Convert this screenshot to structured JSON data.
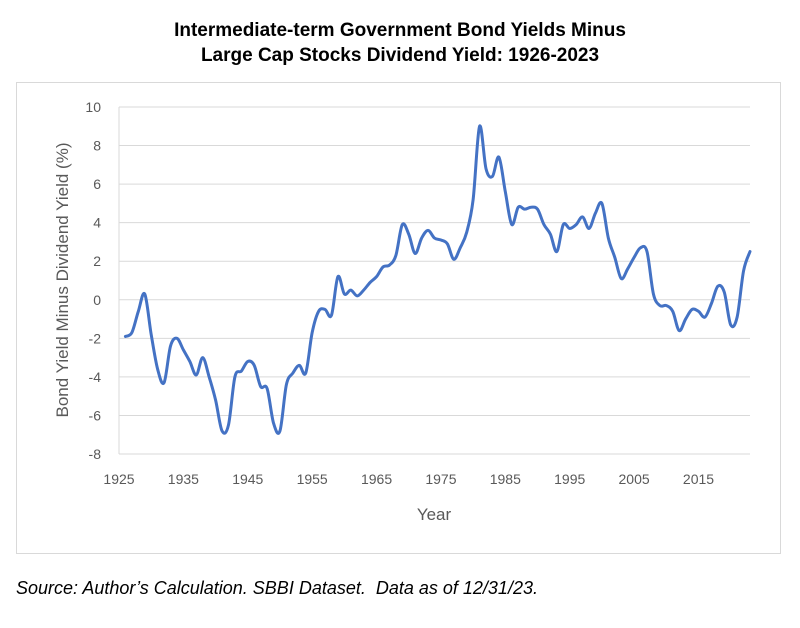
{
  "chart_data": {
    "type": "line",
    "title_line1": "Intermediate-term Government Bond Yields Minus",
    "title_line2": "Large Cap Stocks Dividend Yield: 1926-2023",
    "xlabel": "Year",
    "ylabel": "Bond Yield Minus Dividend Yield (%)",
    "xlim": [
      1925,
      2023
    ],
    "ylim": [
      -8,
      10
    ],
    "x_ticks": [
      1925,
      1935,
      1945,
      1955,
      1965,
      1975,
      1985,
      1995,
      2005,
      2015
    ],
    "y_ticks": [
      10,
      8,
      6,
      4,
      2,
      0,
      -2,
      -4,
      -6,
      -8
    ],
    "grid": "horizontal",
    "line_color": "#4472c4",
    "series": [
      {
        "x": [
          1926,
          1927,
          1928,
          1929,
          1930,
          1931,
          1932,
          1933,
          1934,
          1935,
          1936,
          1937,
          1938,
          1939,
          1940,
          1941,
          1942,
          1943,
          1944,
          1945,
          1946,
          1947,
          1948,
          1949,
          1950,
          1951,
          1952,
          1953,
          1954,
          1955,
          1956,
          1957,
          1958,
          1959,
          1960,
          1961,
          1962,
          1963,
          1964,
          1965,
          1966,
          1967,
          1968,
          1969,
          1970,
          1971,
          1972,
          1973,
          1974,
          1975,
          1976,
          1977,
          1978,
          1979,
          1980,
          1981,
          1982,
          1983,
          1984,
          1985,
          1986,
          1987,
          1988,
          1989,
          1990,
          1991,
          1992,
          1993,
          1994,
          1995,
          1996,
          1997,
          1998,
          1999,
          2000,
          2001,
          2002,
          2003,
          2004,
          2005,
          2006,
          2007,
          2008,
          2009,
          2010,
          2011,
          2012,
          2013,
          2014,
          2015,
          2016,
          2017,
          2018,
          2019,
          2020,
          2021,
          2022,
          2023
        ],
        "y": [
          -1.9,
          -1.7,
          -0.6,
          0.3,
          -1.8,
          -3.6,
          -4.3,
          -2.4,
          -2.0,
          -2.6,
          -3.2,
          -3.9,
          -3.0,
          -4.0,
          -5.2,
          -6.8,
          -6.5,
          -4.0,
          -3.7,
          -3.2,
          -3.4,
          -4.5,
          -4.6,
          -6.4,
          -6.8,
          -4.4,
          -3.8,
          -3.4,
          -3.8,
          -1.7,
          -0.6,
          -0.5,
          -0.8,
          1.2,
          0.3,
          0.5,
          0.2,
          0.5,
          0.9,
          1.2,
          1.7,
          1.8,
          2.3,
          3.9,
          3.4,
          2.4,
          3.2,
          3.6,
          3.2,
          3.1,
          2.9,
          2.1,
          2.7,
          3.5,
          5.2,
          9.0,
          6.8,
          6.4,
          7.4,
          5.6,
          3.9,
          4.8,
          4.7,
          4.8,
          4.7,
          3.9,
          3.4,
          2.5,
          3.9,
          3.7,
          3.9,
          4.3,
          3.7,
          4.5,
          5.0,
          3.2,
          2.2,
          1.1,
          1.6,
          2.2,
          2.7,
          2.5,
          0.3,
          -0.3,
          -0.3,
          -0.6,
          -1.6,
          -1.0,
          -0.5,
          -0.6,
          -0.9,
          -0.2,
          0.7,
          0.4,
          -1.3,
          -0.9,
          1.5,
          2.5
        ]
      }
    ]
  },
  "source_note": "Source: Author’s Calculation. SBBI Dataset.  Data as of 12/31/23."
}
